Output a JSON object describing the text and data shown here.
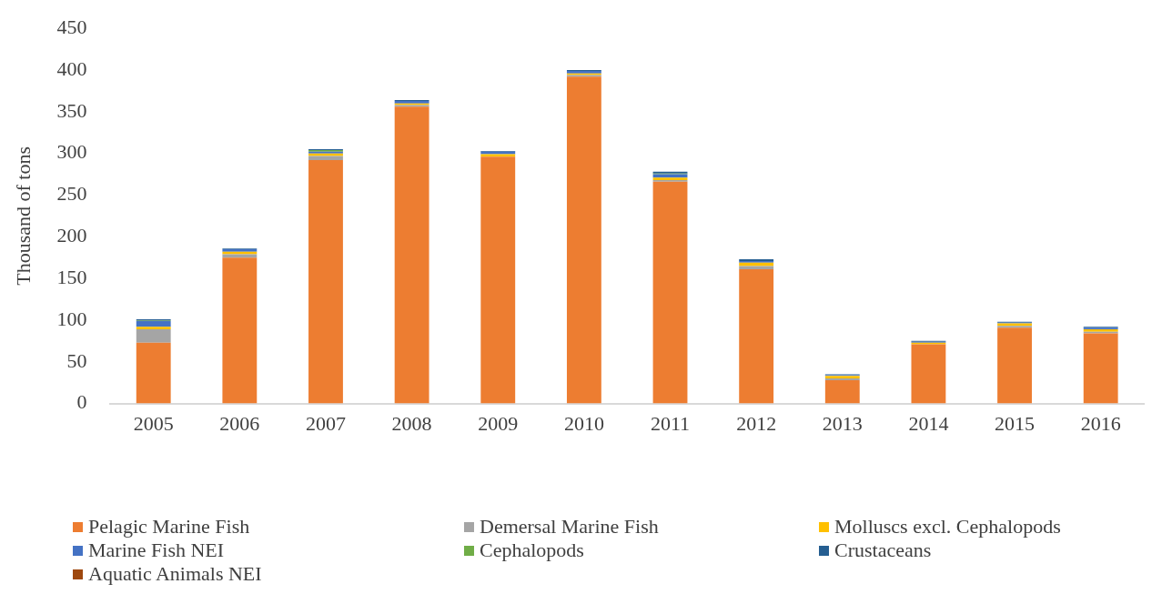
{
  "chart_data": {
    "type": "bar",
    "stacked": true,
    "ylabel": "Thousand of tons",
    "categories": [
      "2005",
      "2006",
      "2007",
      "2008",
      "2009",
      "2010",
      "2011",
      "2012",
      "2013",
      "2014",
      "2015",
      "2016"
    ],
    "series": [
      {
        "name": "Pelagic Marine Fish",
        "color": "#ed7d31",
        "values": [
          73,
          175,
          292,
          356,
          296,
          392,
          266,
          161,
          28,
          71,
          91,
          84
        ]
      },
      {
        "name": "Demersal Marine Fish",
        "color": "#a5a5a5",
        "values": [
          16,
          4,
          5,
          2,
          null,
          2,
          2,
          4,
          2,
          null,
          2,
          2
        ]
      },
      {
        "name": "Molluscs excl. Cephalopods",
        "color": "#ffc000",
        "values": [
          3,
          3,
          3,
          2,
          3,
          2,
          3,
          4,
          3,
          2,
          3,
          3
        ]
      },
      {
        "name": "Marine Fish NEI",
        "color": "#4472c4",
        "values": [
          7,
          3,
          2,
          3,
          3,
          3,
          4,
          2,
          1,
          1,
          1,
          2
        ]
      },
      {
        "name": "Cephalopods",
        "color": "#70ad47",
        "values": [
          1,
          0,
          2,
          0,
          0,
          0,
          1,
          0,
          0,
          0,
          0,
          0
        ]
      },
      {
        "name": "Crustaceans",
        "color": "#255e91",
        "values": [
          1,
          1,
          1,
          1,
          1,
          1,
          2,
          2,
          1,
          1,
          1,
          1
        ]
      },
      {
        "name": "Aquatic Animals NEI",
        "color": "#9e480e",
        "values": [
          0,
          0,
          0,
          0,
          0,
          0,
          0,
          0,
          0,
          0,
          0,
          0
        ]
      }
    ],
    "ylim": [
      0,
      450
    ],
    "yticks": [
      0,
      50,
      100,
      150,
      200,
      250,
      300,
      350,
      400,
      450
    ],
    "grid": false,
    "legend": "bottom"
  }
}
